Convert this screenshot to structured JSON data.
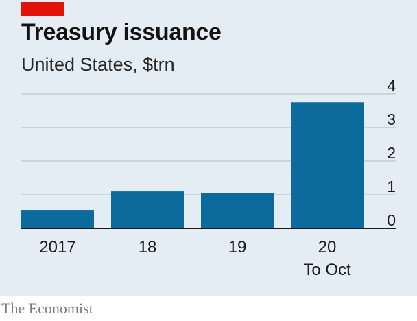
{
  "header": {
    "title": "Treasury issuance",
    "subtitle": "United States, $trn"
  },
  "footer": {
    "source": "The Economist"
  },
  "colors": {
    "bar": "#0c6b9c",
    "accent": "#e3120b",
    "background": "#e4edf3"
  },
  "chart_data": {
    "type": "bar",
    "title": "Treasury issuance",
    "subtitle": "United States, $trn",
    "categories": [
      "2017",
      "18",
      "19",
      "20"
    ],
    "category_sublabels": [
      "",
      "",
      "",
      "To Oct"
    ],
    "values": [
      0.55,
      1.1,
      1.05,
      3.75
    ],
    "y_ticks": [
      "0",
      "1",
      "2",
      "3",
      "4"
    ],
    "ylim": [
      0,
      4
    ],
    "grid": true,
    "y_axis_side": "right"
  }
}
